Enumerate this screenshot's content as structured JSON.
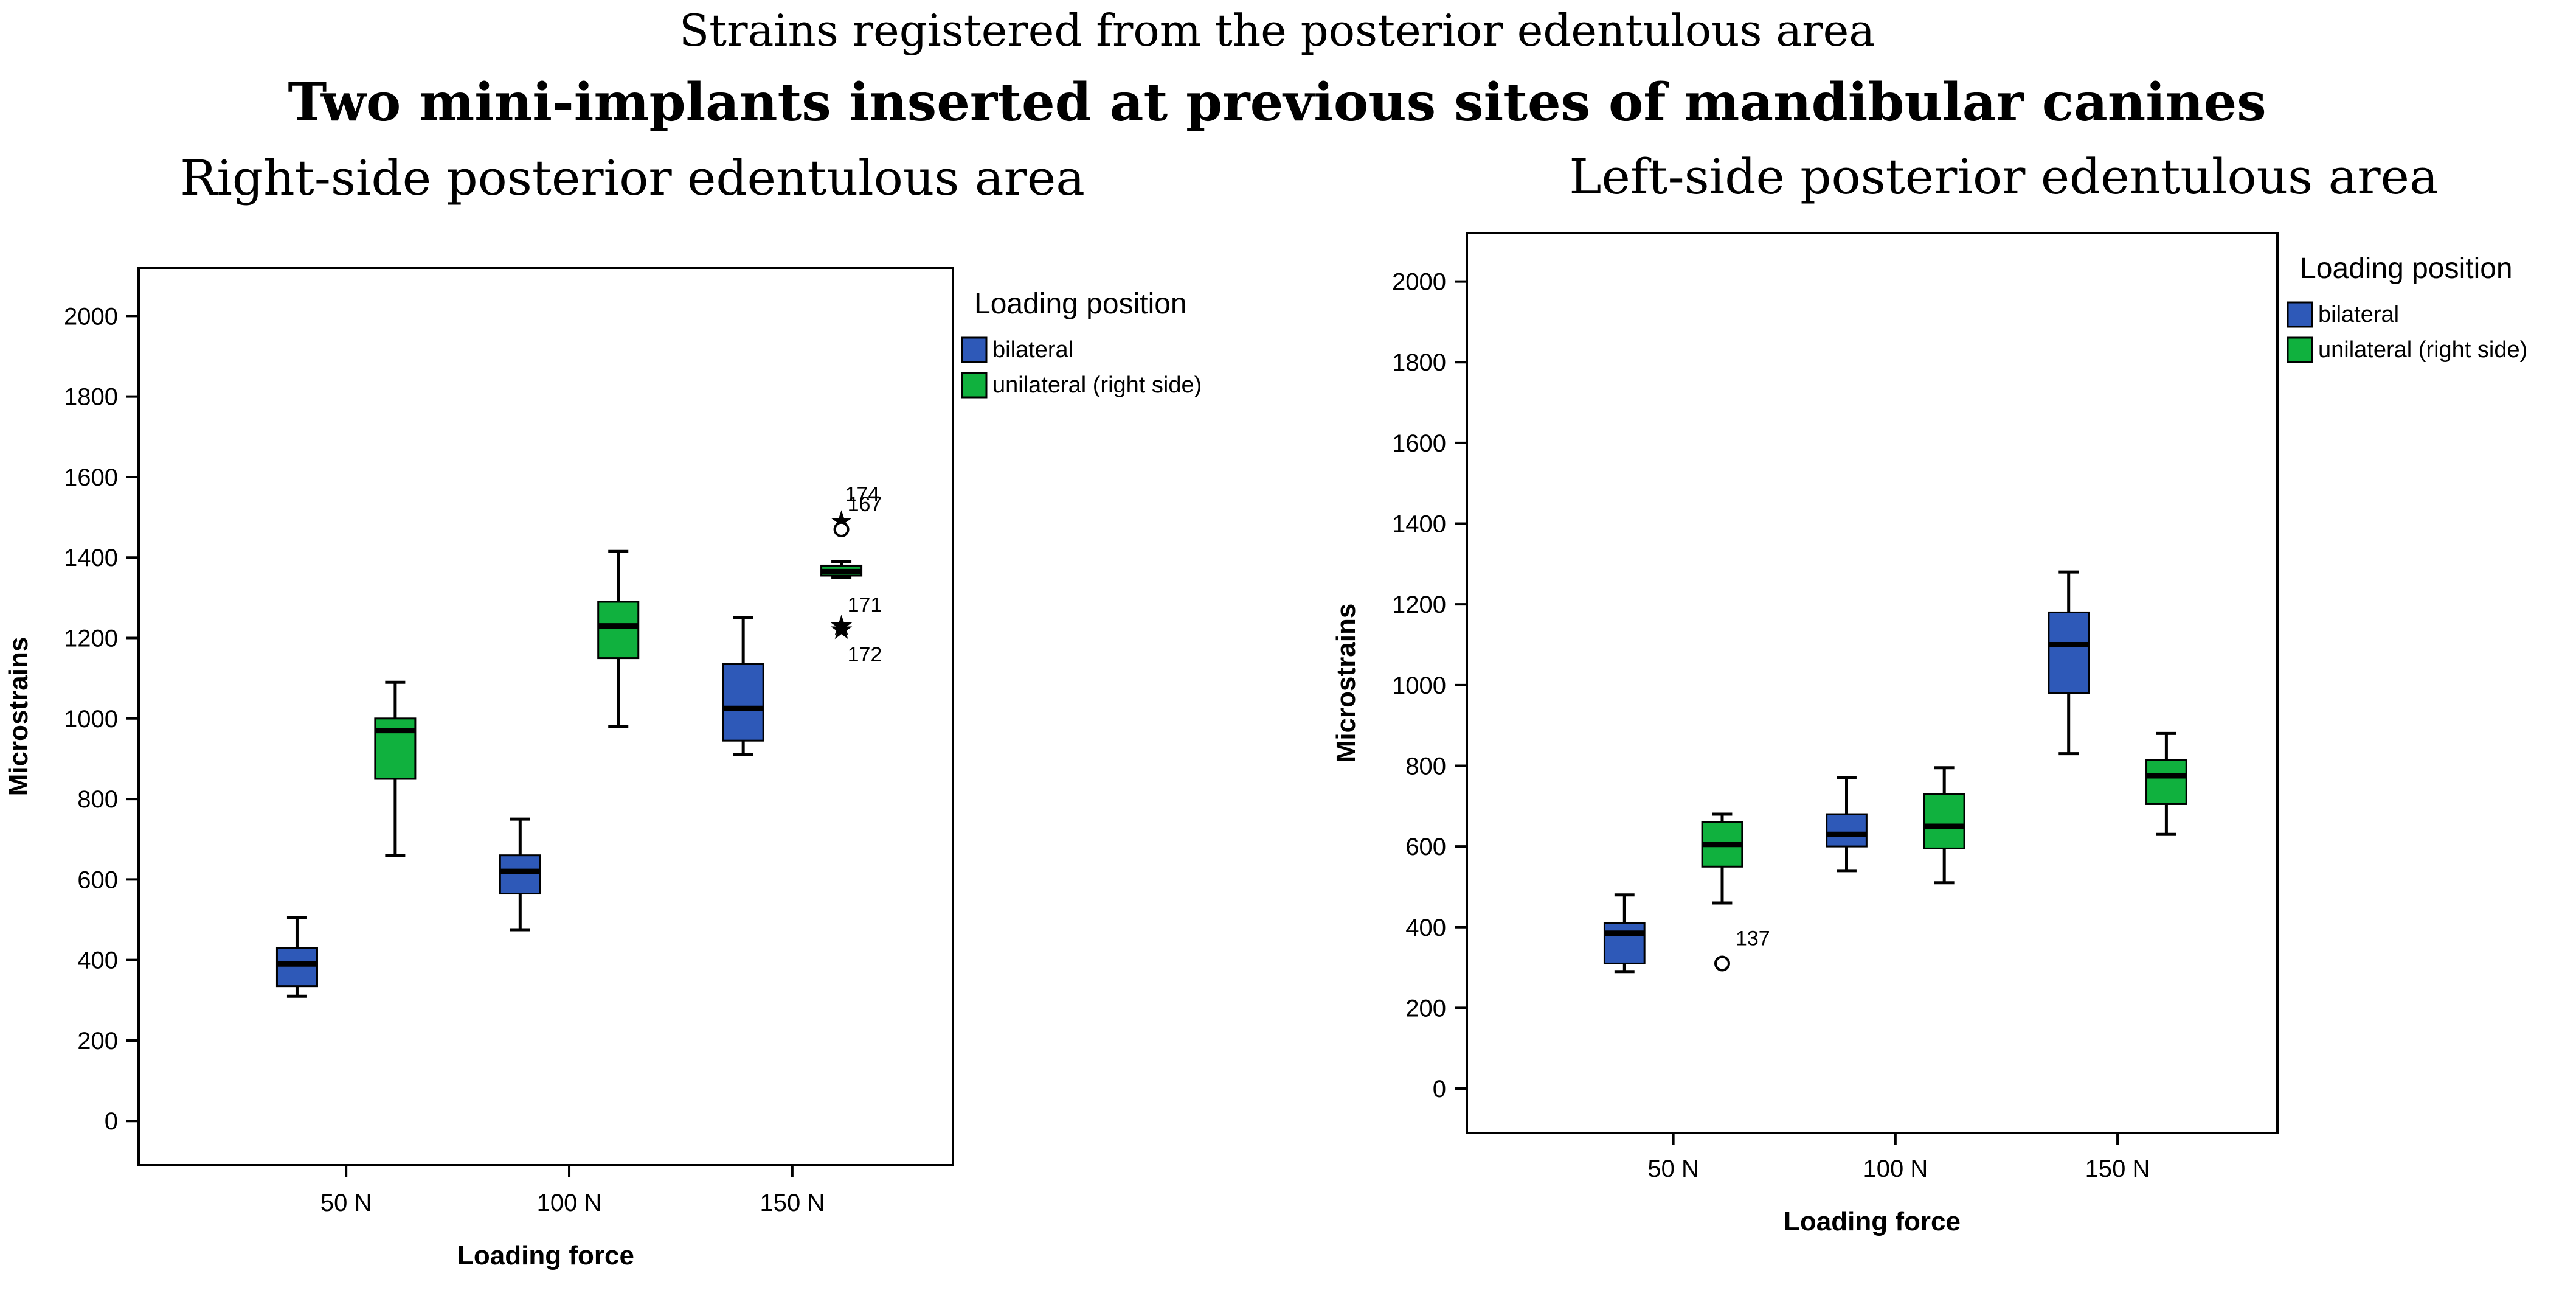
{
  "figure": {
    "title_line1": "Strains registered from the posterior edentulous area",
    "title_line2": "Two mini-implants inserted at previous sites of mandibular canines"
  },
  "colors": {
    "bilateral": "#2E59B8",
    "unilateral": "#10B13E",
    "axis": "#000000"
  },
  "chart_data": [
    {
      "type": "box",
      "subtitle": "Right-side posterior edentulous area",
      "xlabel": "Loading force",
      "ylabel": "Microstrains",
      "ylim": [
        -110,
        2120
      ],
      "yticks": [
        0,
        200,
        400,
        600,
        800,
        1000,
        1200,
        1400,
        1600,
        1800,
        2000
      ],
      "categories": [
        "50 N",
        "100 N",
        "150 N"
      ],
      "legend": {
        "title": "Loading position",
        "entries": [
          "bilateral",
          "unilateral  (right side)"
        ]
      },
      "series": [
        {
          "name": "bilateral",
          "boxes": [
            {
              "category": "50 N",
              "min": 310,
              "q1": 335,
              "median": 390,
              "q3": 430,
              "max": 505
            },
            {
              "category": "100 N",
              "min": 475,
              "q1": 565,
              "median": 620,
              "q3": 660,
              "max": 750
            },
            {
              "category": "150 N",
              "min": 910,
              "q1": 945,
              "median": 1025,
              "q3": 1135,
              "max": 1250
            }
          ]
        },
        {
          "name": "unilateral  (right side)",
          "boxes": [
            {
              "category": "50 N",
              "min": 660,
              "q1": 850,
              "median": 970,
              "q3": 1000,
              "max": 1090
            },
            {
              "category": "100 N",
              "min": 980,
              "q1": 1150,
              "median": 1230,
              "q3": 1290,
              "max": 1415
            },
            {
              "category": "150 N",
              "min": 1350,
              "q1": 1355,
              "median": 1365,
              "q3": 1380,
              "max": 1390
            }
          ]
        }
      ],
      "outliers": [
        {
          "series": "unilateral  (right side)",
          "category": "150 N",
          "value": 1495,
          "marker": "star",
          "label": "174"
        },
        {
          "series": "unilateral  (right side)",
          "category": "150 N",
          "value": 1470,
          "marker": "circle",
          "label": "167"
        },
        {
          "series": "unilateral  (right side)",
          "category": "150 N",
          "value": 1235,
          "marker": "star",
          "label": "171"
        },
        {
          "series": "unilateral  (right side)",
          "category": "150 N",
          "value": 1225,
          "marker": "star",
          "label": "172"
        }
      ]
    },
    {
      "type": "box",
      "subtitle": "Left-side posterior edentulous area",
      "xlabel": "Loading force",
      "ylabel": "Microstrains",
      "ylim": [
        -110,
        2120
      ],
      "yticks": [
        0,
        200,
        400,
        600,
        800,
        1000,
        1200,
        1400,
        1600,
        1800,
        2000
      ],
      "categories": [
        "50 N",
        "100 N",
        "150 N"
      ],
      "legend": {
        "title": "Loading position",
        "entries": [
          "bilateral",
          "unilateral  (right side)"
        ]
      },
      "series": [
        {
          "name": "bilateral",
          "boxes": [
            {
              "category": "50 N",
              "min": 290,
              "q1": 310,
              "median": 385,
              "q3": 410,
              "max": 480
            },
            {
              "category": "100 N",
              "min": 540,
              "q1": 600,
              "median": 630,
              "q3": 680,
              "max": 770
            },
            {
              "category": "150 N",
              "min": 830,
              "q1": 980,
              "median": 1100,
              "q3": 1180,
              "max": 1280
            }
          ]
        },
        {
          "name": "unilateral  (right side)",
          "boxes": [
            {
              "category": "50 N",
              "min": 460,
              "q1": 550,
              "median": 605,
              "q3": 660,
              "max": 680
            },
            {
              "category": "100 N",
              "min": 510,
              "q1": 595,
              "median": 650,
              "q3": 730,
              "max": 795
            },
            {
              "category": "150 N",
              "min": 630,
              "q1": 705,
              "median": 775,
              "q3": 815,
              "max": 880
            }
          ]
        }
      ],
      "outliers": [
        {
          "series": "unilateral  (right side)",
          "category": "50 N",
          "value": 310,
          "marker": "circle",
          "label": "137"
        }
      ]
    }
  ]
}
